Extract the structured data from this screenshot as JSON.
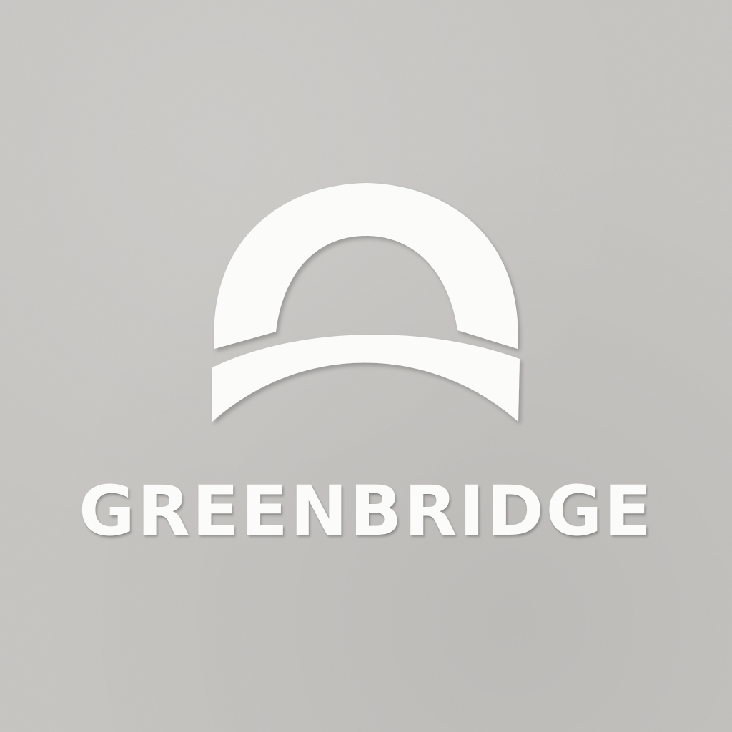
{
  "brand": {
    "name": "GREENBRIDGE",
    "logo_icon": "bridge-arch-icon"
  },
  "colors": {
    "background": "#c6c5c2",
    "logo": "#fbfbf9"
  }
}
